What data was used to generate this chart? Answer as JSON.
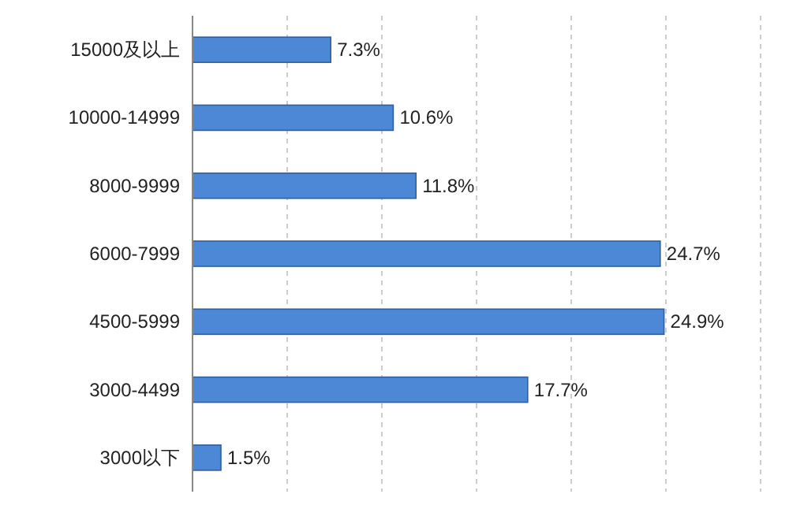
{
  "chart_data": {
    "type": "bar",
    "orientation": "horizontal",
    "categories": [
      "15000及以上",
      "10000-14999",
      "8000-9999",
      "6000-7999",
      "4500-5999",
      "3000-4499",
      "3000以下"
    ],
    "values": [
      7.3,
      10.6,
      11.8,
      24.7,
      24.9,
      17.7,
      1.5
    ],
    "value_labels": [
      "7.3%",
      "10.6%",
      "11.8%",
      "24.7%",
      "24.9%",
      "17.7%",
      "1.5%"
    ],
    "color": "#4d88d6",
    "xlim": [
      0,
      30
    ],
    "xticks": [
      {
        "value": 5,
        "label": null
      },
      {
        "value": 10,
        "label": null
      },
      {
        "value": 15,
        "label": null
      },
      {
        "value": 20,
        "label": null
      },
      {
        "value": 25,
        "label": null
      },
      {
        "value": 30,
        "label": null
      }
    ],
    "grid": "x"
  }
}
